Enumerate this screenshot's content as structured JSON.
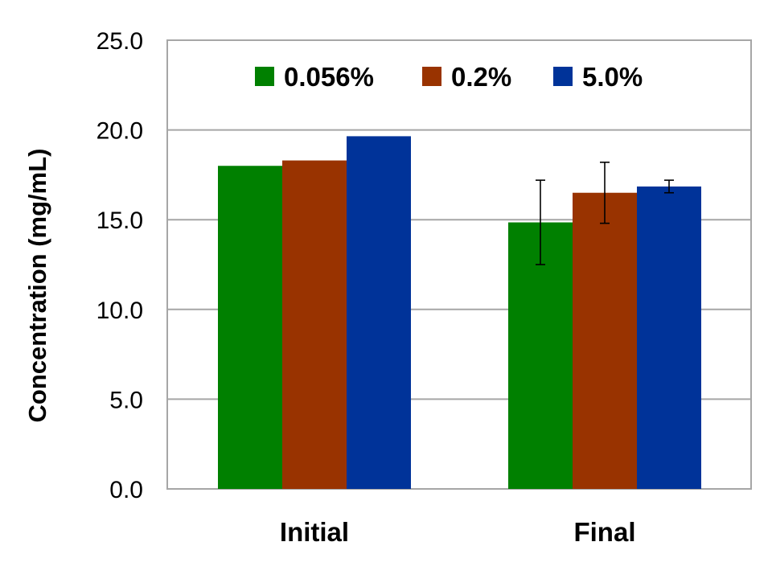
{
  "chart_data": {
    "type": "bar",
    "categories": [
      "Initial",
      "Final"
    ],
    "series": [
      {
        "name": "0.056%",
        "color": "#008000",
        "values": [
          18.0,
          14.85
        ],
        "error": [
          null,
          2.35
        ]
      },
      {
        "name": "0.2%",
        "color": "#993300",
        "values": [
          18.3,
          16.5
        ],
        "error": [
          null,
          1.7
        ]
      },
      {
        "name": "5.0%",
        "color": "#003399",
        "values": [
          19.65,
          16.85
        ],
        "error": [
          null,
          0.35
        ]
      }
    ],
    "title": "",
    "xlabel": "",
    "ylabel": "Concentration (mg/mL)",
    "ylim": [
      0,
      25
    ],
    "yticks": [
      "0.0",
      "5.0",
      "10.0",
      "15.0",
      "20.0",
      "25.0"
    ],
    "ytick_values": [
      0,
      5,
      10,
      15,
      20,
      25
    ],
    "grid": true,
    "legend_position": "top-center",
    "gridline_color": "#a6a6a6"
  }
}
